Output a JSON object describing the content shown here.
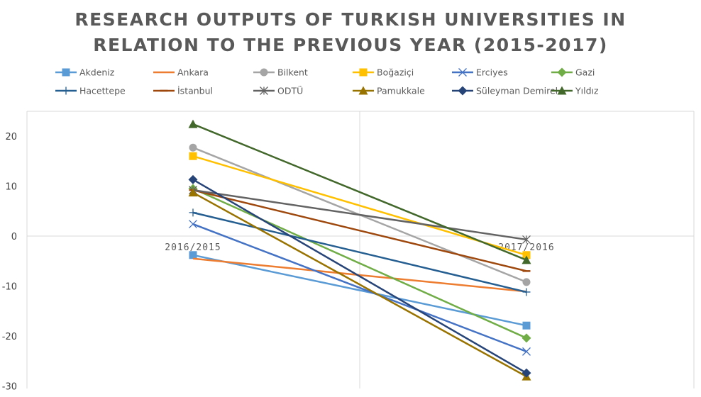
{
  "chart_data": {
    "type": "line",
    "title_lines": [
      "RESEARCH OUTPUTS OF TURKISH UNIVERSITIES IN",
      "RELATION TO THE PREVIOUS YEAR (2015-2017)"
    ],
    "categories": [
      "2016/2015",
      "2017/2016"
    ],
    "ylim": [
      -30,
      25
    ],
    "yticks": [
      -30,
      -20,
      -10,
      0,
      10,
      20
    ],
    "legend_position": "top",
    "grid": true,
    "series": [
      {
        "name": "Akdeniz",
        "values": [
          -3.8,
          -17.9
        ],
        "color": "#5B9BD5",
        "marker": "square"
      },
      {
        "name": "Ankara",
        "values": [
          -4.5,
          -11.1
        ],
        "color": "#ED7D31",
        "marker": "none"
      },
      {
        "name": "Bilkent",
        "values": [
          17.7,
          -9.2
        ],
        "color": "#A5A5A5",
        "marker": "circle"
      },
      {
        "name": "Boğaziçi",
        "values": [
          16.0,
          -3.8
        ],
        "color": "#FFC000",
        "marker": "square"
      },
      {
        "name": "Erciyes",
        "values": [
          2.4,
          -23.1
        ],
        "color": "#4472C4",
        "marker": "x"
      },
      {
        "name": "Gazi",
        "values": [
          9.5,
          -20.4
        ],
        "color": "#70AD47",
        "marker": "diamond"
      },
      {
        "name": "Hacettepe",
        "values": [
          4.7,
          -11.2
        ],
        "color": "#255E91",
        "marker": "plus"
      },
      {
        "name": "İstanbul",
        "values": [
          9.2,
          -7.0
        ],
        "color": "#9E480E",
        "marker": "dash"
      },
      {
        "name": "ODTÜ",
        "values": [
          9.2,
          -0.7
        ],
        "color": "#636363",
        "marker": "star"
      },
      {
        "name": "Pamukkale",
        "values": [
          8.7,
          -28.1
        ],
        "color": "#997300",
        "marker": "triangle"
      },
      {
        "name": "Süleyman Demirel",
        "values": [
          11.3,
          -27.4
        ],
        "color": "#264478",
        "marker": "diamond"
      },
      {
        "name": "Yıldız",
        "values": [
          22.4,
          -4.8
        ],
        "color": "#43682B",
        "marker": "triangle"
      }
    ]
  }
}
